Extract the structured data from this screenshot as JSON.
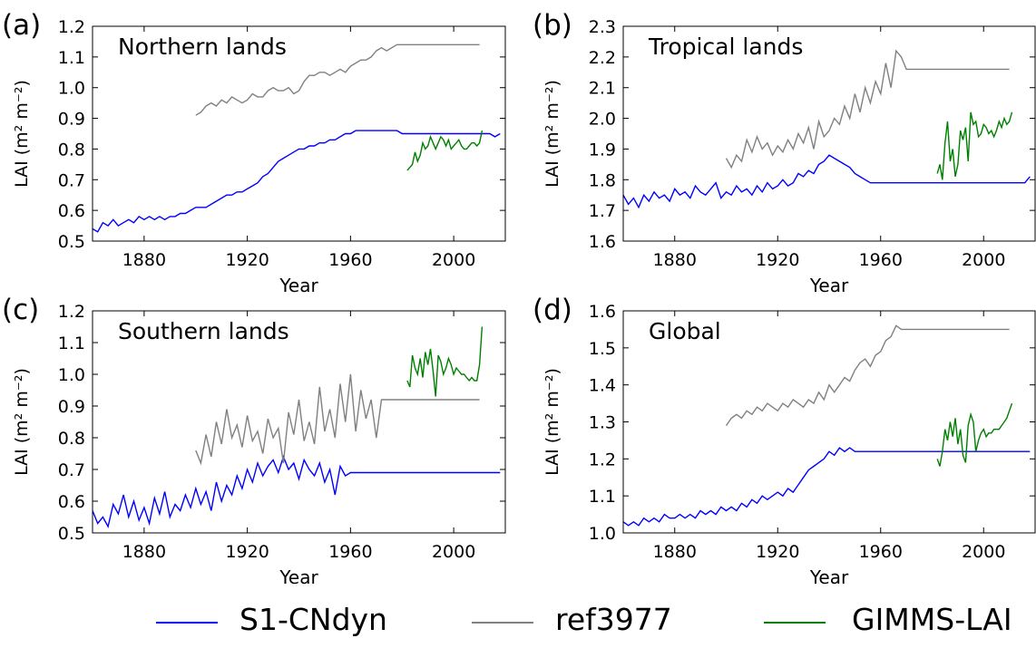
{
  "legend": {
    "s1": {
      "label": "S1-CNdyn",
      "color": "#0000ff"
    },
    "ref": {
      "label": "ref3977",
      "color": "#808080"
    },
    "gimms": {
      "label": "GIMMS-LAI",
      "color": "#008000"
    }
  },
  "chart_data": [
    {
      "type": "line",
      "panel_label": "(a)",
      "title": "Northern lands",
      "xlabel": "Year",
      "ylabel": "LAI (m² m⁻²)",
      "xlim": [
        1860,
        2020
      ],
      "ylim": [
        0.5,
        1.2
      ],
      "xticks": [
        1880,
        1920,
        1960,
        2000
      ],
      "yticks": [
        "0.5",
        "0.6",
        "0.7",
        "0.8",
        "0.9",
        "1.0",
        "1.1",
        "1.2"
      ],
      "series": [
        {
          "name": "S1-CNdyn",
          "color": "#0000ff",
          "x_start": 1860,
          "step": 2,
          "values": [
            0.54,
            0.53,
            0.56,
            0.55,
            0.57,
            0.55,
            0.56,
            0.57,
            0.56,
            0.58,
            0.57,
            0.58,
            0.57,
            0.58,
            0.57,
            0.58,
            0.58,
            0.59,
            0.59,
            0.6,
            0.61,
            0.61,
            0.61,
            0.62,
            0.63,
            0.64,
            0.65,
            0.65,
            0.66,
            0.66,
            0.67,
            0.68,
            0.69,
            0.71,
            0.72,
            0.74,
            0.76,
            0.77,
            0.78,
            0.79,
            0.8,
            0.8,
            0.81,
            0.81,
            0.82,
            0.82,
            0.83,
            0.83,
            0.84,
            0.85,
            0.85,
            0.86,
            0.86,
            0.86,
            0.86,
            0.86,
            0.86,
            0.86,
            0.86,
            0.86,
            0.85,
            0.85,
            0.85,
            0.85,
            0.85,
            0.85,
            0.85,
            0.85,
            0.85,
            0.85,
            0.85,
            0.85,
            0.85,
            0.85,
            0.85,
            0.85,
            0.85,
            0.85,
            0.84,
            0.85
          ]
        },
        {
          "name": "ref3977",
          "color": "#808080",
          "x_start": 1900,
          "step": 2,
          "values": [
            0.91,
            0.92,
            0.94,
            0.95,
            0.94,
            0.96,
            0.95,
            0.97,
            0.96,
            0.95,
            0.96,
            0.98,
            0.97,
            0.97,
            0.99,
            1.0,
            0.99,
            0.99,
            1.0,
            0.98,
            0.99,
            1.02,
            1.04,
            1.04,
            1.05,
            1.05,
            1.04,
            1.05,
            1.06,
            1.05,
            1.07,
            1.08,
            1.09,
            1.09,
            1.1,
            1.12,
            1.13,
            1.12,
            1.13,
            1.14,
            1.14,
            1.14,
            1.14,
            1.14,
            1.14,
            1.14,
            1.14,
            1.14,
            1.14,
            1.14,
            1.14,
            1.14,
            1.14,
            1.14,
            1.14,
            1.14
          ]
        },
        {
          "name": "GIMMS-LAI",
          "color": "#008000",
          "x_start": 1982,
          "step": 1,
          "values": [
            0.73,
            0.74,
            0.75,
            0.79,
            0.76,
            0.78,
            0.82,
            0.8,
            0.81,
            0.84,
            0.82,
            0.8,
            0.82,
            0.84,
            0.83,
            0.81,
            0.83,
            0.8,
            0.81,
            0.82,
            0.83,
            0.81,
            0.8,
            0.8,
            0.81,
            0.82,
            0.82,
            0.81,
            0.82,
            0.86
          ]
        }
      ]
    },
    {
      "type": "line",
      "panel_label": "(b)",
      "title": "Tropical lands",
      "xlabel": "Year",
      "ylabel": "LAI (m² m⁻²)",
      "xlim": [
        1860,
        2020
      ],
      "ylim": [
        1.6,
        2.3
      ],
      "xticks": [
        1880,
        1920,
        1960,
        2000
      ],
      "yticks": [
        "1.6",
        "1.7",
        "1.8",
        "1.9",
        "2.0",
        "2.1",
        "2.2",
        "2.3"
      ],
      "series": [
        {
          "name": "S1-CNdyn",
          "color": "#0000ff",
          "x_start": 1860,
          "step": 2,
          "values": [
            1.75,
            1.72,
            1.74,
            1.71,
            1.75,
            1.73,
            1.76,
            1.74,
            1.75,
            1.73,
            1.77,
            1.75,
            1.76,
            1.74,
            1.78,
            1.76,
            1.75,
            1.77,
            1.79,
            1.74,
            1.76,
            1.75,
            1.78,
            1.76,
            1.77,
            1.75,
            1.78,
            1.76,
            1.79,
            1.77,
            1.78,
            1.8,
            1.78,
            1.79,
            1.82,
            1.81,
            1.83,
            1.82,
            1.85,
            1.86,
            1.88,
            1.87,
            1.86,
            1.85,
            1.84,
            1.82,
            1.81,
            1.8,
            1.79,
            1.79,
            1.79,
            1.79,
            1.79,
            1.79,
            1.79,
            1.79,
            1.79,
            1.79,
            1.79,
            1.79,
            1.79,
            1.79,
            1.79,
            1.79,
            1.79,
            1.79,
            1.79,
            1.79,
            1.79,
            1.79,
            1.79,
            1.79,
            1.79,
            1.79,
            1.79,
            1.79,
            1.79,
            1.79,
            1.79,
            1.81
          ]
        },
        {
          "name": "ref3977",
          "color": "#808080",
          "x_start": 1900,
          "step": 2,
          "values": [
            1.87,
            1.84,
            1.88,
            1.86,
            1.93,
            1.89,
            1.94,
            1.9,
            1.92,
            1.88,
            1.91,
            1.89,
            1.93,
            1.9,
            1.95,
            1.92,
            1.97,
            1.9,
            1.99,
            1.94,
            1.96,
            2.0,
            1.98,
            2.04,
            2.0,
            2.08,
            2.02,
            2.1,
            2.05,
            2.12,
            2.08,
            2.18,
            2.1,
            2.22,
            2.2,
            2.16,
            2.16,
            2.16,
            2.16,
            2.16,
            2.16,
            2.16,
            2.16,
            2.16,
            2.16,
            2.16,
            2.16,
            2.16,
            2.16,
            2.16,
            2.16,
            2.16,
            2.16,
            2.16,
            2.16,
            2.16
          ]
        },
        {
          "name": "GIMMS-LAI",
          "color": "#008000",
          "x_start": 1982,
          "step": 1,
          "values": [
            1.82,
            1.85,
            1.8,
            1.92,
            1.99,
            1.86,
            1.9,
            1.81,
            1.85,
            1.96,
            1.93,
            1.97,
            1.86,
            2.02,
            1.98,
            1.99,
            1.94,
            1.95,
            1.98,
            1.97,
            1.95,
            1.96,
            1.94,
            1.96,
            1.99,
            1.97,
            2.0,
            1.98,
            1.99,
            2.02
          ]
        }
      ]
    },
    {
      "type": "line",
      "panel_label": "(c)",
      "title": "Southern lands",
      "xlabel": "Year",
      "ylabel": "LAI (m² m⁻²)",
      "xlim": [
        1860,
        2020
      ],
      "ylim": [
        0.5,
        1.2
      ],
      "xticks": [
        1880,
        1920,
        1960,
        2000
      ],
      "yticks": [
        "0.5",
        "0.6",
        "0.7",
        "0.8",
        "0.9",
        "1.0",
        "1.1",
        "1.2"
      ],
      "series": [
        {
          "name": "S1-CNdyn",
          "color": "#0000ff",
          "x_start": 1860,
          "step": 2,
          "values": [
            0.57,
            0.53,
            0.55,
            0.52,
            0.59,
            0.56,
            0.62,
            0.55,
            0.6,
            0.54,
            0.58,
            0.53,
            0.61,
            0.56,
            0.63,
            0.55,
            0.59,
            0.57,
            0.62,
            0.58,
            0.64,
            0.59,
            0.63,
            0.57,
            0.66,
            0.6,
            0.65,
            0.62,
            0.68,
            0.64,
            0.7,
            0.66,
            0.72,
            0.68,
            0.71,
            0.73,
            0.69,
            0.74,
            0.7,
            0.72,
            0.67,
            0.73,
            0.7,
            0.68,
            0.72,
            0.66,
            0.7,
            0.62,
            0.71,
            0.68,
            0.69,
            0.69,
            0.69,
            0.69,
            0.69,
            0.69,
            0.69,
            0.69,
            0.69,
            0.69,
            0.69,
            0.69,
            0.69,
            0.69,
            0.69,
            0.69,
            0.69,
            0.69,
            0.69,
            0.69,
            0.69,
            0.69,
            0.69,
            0.69,
            0.69,
            0.69,
            0.69,
            0.69,
            0.69,
            0.69
          ]
        },
        {
          "name": "ref3977",
          "color": "#808080",
          "x_start": 1900,
          "step": 2,
          "values": [
            0.76,
            0.72,
            0.81,
            0.74,
            0.85,
            0.78,
            0.89,
            0.8,
            0.84,
            0.77,
            0.87,
            0.79,
            0.82,
            0.75,
            0.86,
            0.8,
            0.83,
            0.72,
            0.88,
            0.81,
            0.92,
            0.79,
            0.85,
            0.78,
            0.96,
            0.82,
            0.89,
            0.8,
            0.97,
            0.85,
            1.0,
            0.82,
            0.95,
            0.86,
            0.92,
            0.8,
            0.92,
            0.92,
            0.92,
            0.92,
            0.92,
            0.92,
            0.92,
            0.92,
            0.92,
            0.92,
            0.92,
            0.92,
            0.92,
            0.92,
            0.92,
            0.92,
            0.92,
            0.92,
            0.92,
            0.92
          ]
        },
        {
          "name": "GIMMS-LAI",
          "color": "#008000",
          "x_start": 1982,
          "step": 1,
          "values": [
            0.98,
            0.96,
            1.06,
            1.02,
            1.0,
            1.05,
            0.99,
            1.07,
            1.03,
            1.08,
            1.01,
            0.93,
            1.06,
            1.04,
            1.0,
            1.02,
            1.05,
            1.03,
            1.0,
            1.02,
            1.01,
            1.0,
            1.0,
            0.99,
            0.98,
            0.99,
            0.98,
            0.98,
            1.03,
            1.15
          ]
        }
      ]
    },
    {
      "type": "line",
      "panel_label": "(d)",
      "title": "Global",
      "xlabel": "Year",
      "ylabel": "LAI (m² m⁻²)",
      "xlim": [
        1860,
        2020
      ],
      "ylim": [
        1.0,
        1.6
      ],
      "xticks": [
        1880,
        1920,
        1960,
        2000
      ],
      "yticks": [
        "1.0",
        "1.1",
        "1.2",
        "1.3",
        "1.4",
        "1.5",
        "1.6"
      ],
      "series": [
        {
          "name": "S1-CNdyn",
          "color": "#0000ff",
          "x_start": 1860,
          "step": 2,
          "values": [
            1.03,
            1.02,
            1.03,
            1.02,
            1.04,
            1.03,
            1.04,
            1.03,
            1.05,
            1.04,
            1.04,
            1.05,
            1.04,
            1.05,
            1.04,
            1.06,
            1.05,
            1.06,
            1.05,
            1.07,
            1.06,
            1.07,
            1.06,
            1.08,
            1.07,
            1.09,
            1.08,
            1.1,
            1.09,
            1.1,
            1.11,
            1.1,
            1.12,
            1.11,
            1.13,
            1.15,
            1.17,
            1.18,
            1.19,
            1.2,
            1.22,
            1.21,
            1.23,
            1.22,
            1.23,
            1.22,
            1.22,
            1.22,
            1.22,
            1.22,
            1.22,
            1.22,
            1.22,
            1.22,
            1.22,
            1.22,
            1.22,
            1.22,
            1.22,
            1.22,
            1.22,
            1.22,
            1.22,
            1.22,
            1.22,
            1.22,
            1.22,
            1.22,
            1.22,
            1.22,
            1.22,
            1.22,
            1.22,
            1.22,
            1.22,
            1.22,
            1.22,
            1.22,
            1.22,
            1.22
          ]
        },
        {
          "name": "ref3977",
          "color": "#808080",
          "x_start": 1900,
          "step": 2,
          "values": [
            1.29,
            1.31,
            1.32,
            1.31,
            1.33,
            1.32,
            1.34,
            1.33,
            1.35,
            1.34,
            1.33,
            1.35,
            1.34,
            1.36,
            1.35,
            1.34,
            1.36,
            1.35,
            1.38,
            1.36,
            1.4,
            1.38,
            1.4,
            1.42,
            1.41,
            1.44,
            1.46,
            1.47,
            1.45,
            1.48,
            1.49,
            1.52,
            1.53,
            1.56,
            1.55,
            1.55,
            1.55,
            1.55,
            1.55,
            1.55,
            1.55,
            1.55,
            1.55,
            1.55,
            1.55,
            1.55,
            1.55,
            1.55,
            1.55,
            1.55,
            1.55,
            1.55,
            1.55,
            1.55,
            1.55,
            1.55
          ]
        },
        {
          "name": "GIMMS-LAI",
          "color": "#008000",
          "x_start": 1982,
          "step": 1,
          "values": [
            1.2,
            1.18,
            1.22,
            1.28,
            1.25,
            1.3,
            1.26,
            1.31,
            1.24,
            1.28,
            1.21,
            1.19,
            1.29,
            1.32,
            1.3,
            1.22,
            1.25,
            1.27,
            1.28,
            1.26,
            1.27,
            1.27,
            1.28,
            1.28,
            1.28,
            1.29,
            1.3,
            1.31,
            1.33,
            1.35
          ]
        }
      ]
    }
  ]
}
